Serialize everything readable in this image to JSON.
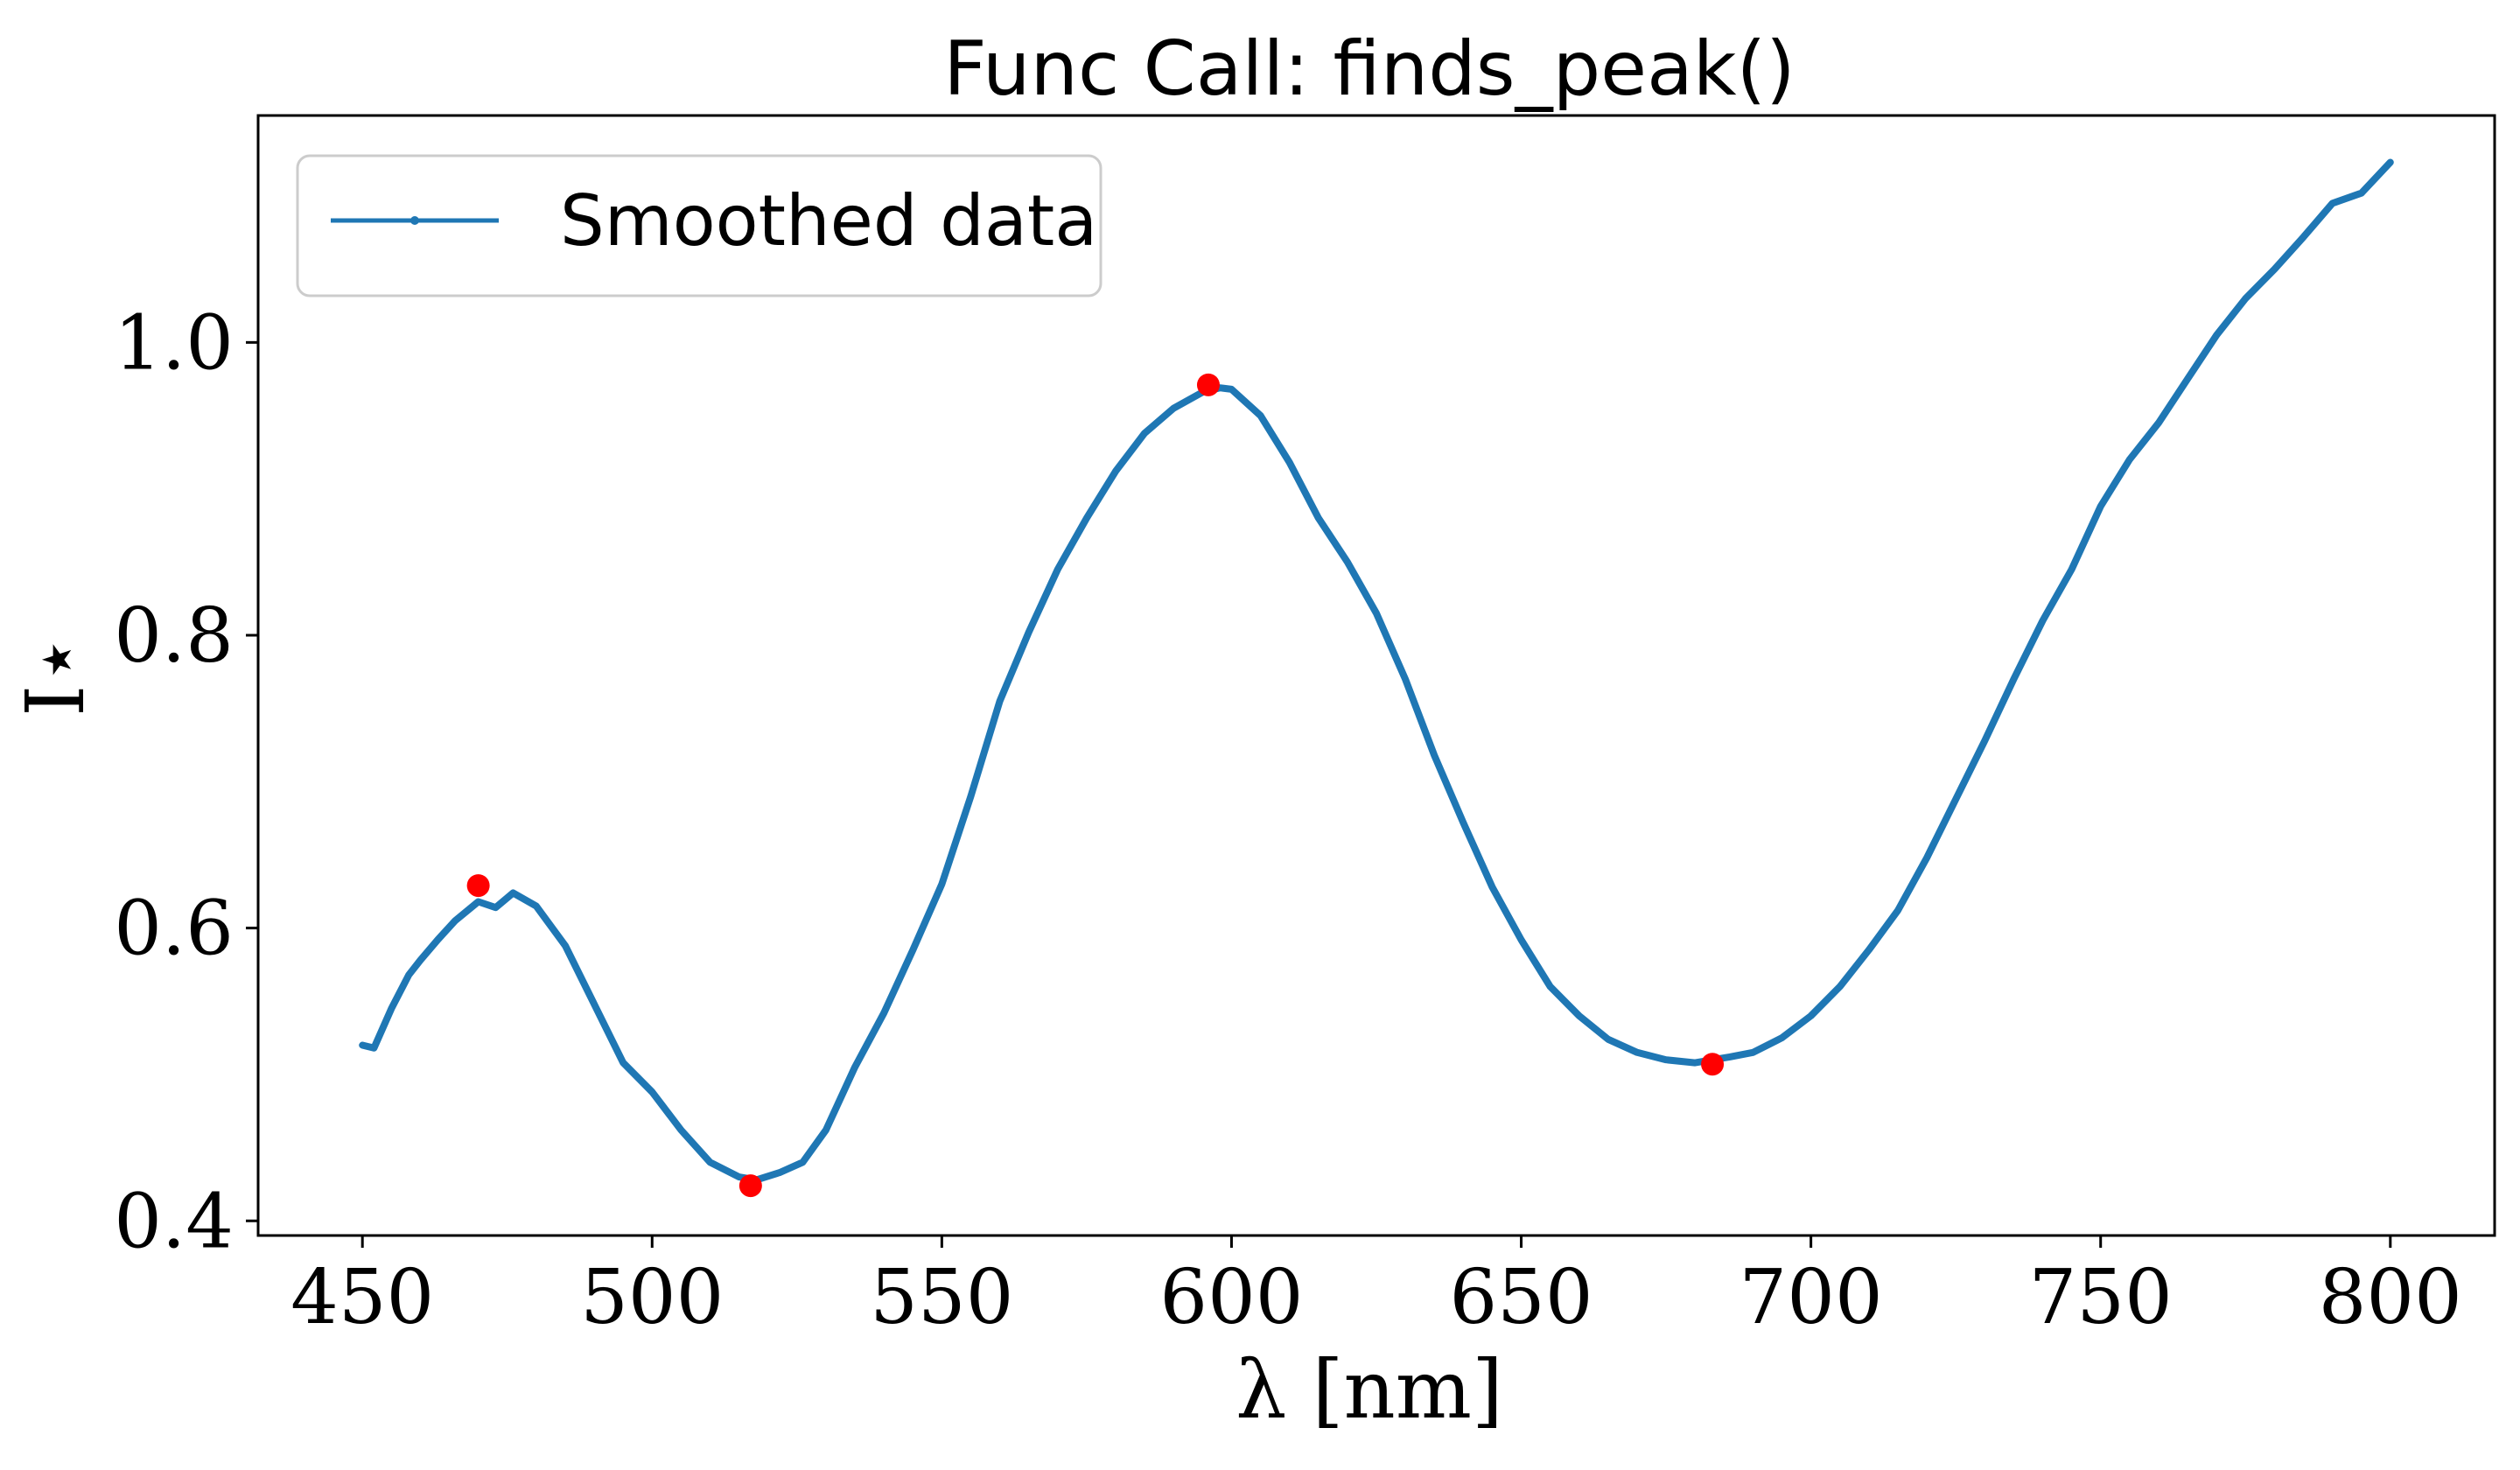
{
  "chart_data": {
    "type": "line",
    "title": "Func Call: finds_peak()",
    "xlabel": "λ [nm]",
    "ylabel": "I⋆",
    "xlim": [
      432,
      818
    ],
    "ylim": [
      0.39,
      1.155
    ],
    "xticks": [
      450,
      500,
      550,
      600,
      650,
      700,
      750,
      800
    ],
    "yticks": [
      0.4,
      0.6,
      0.8,
      1.0
    ],
    "xtick_labels": [
      "450",
      "500",
      "550",
      "600",
      "650",
      "700",
      "750",
      "800"
    ],
    "ytick_labels": [
      "0.4",
      "0.6",
      "0.8",
      "1.0"
    ],
    "grid": false,
    "legend": {
      "position": "top-left",
      "entries": [
        "Smoothed data"
      ]
    },
    "series": [
      {
        "name": "Smoothed data",
        "color": "#1f77b4",
        "x": [
          450,
          452,
          455,
          458,
          460,
          463,
          466,
          470,
          473,
          476,
          480,
          485,
          490,
          495,
          500,
          505,
          510,
          515,
          518,
          522,
          526,
          530,
          535,
          540,
          545,
          550,
          555,
          560,
          565,
          570,
          575,
          580,
          585,
          590,
          595,
          598,
          600,
          605,
          610,
          615,
          620,
          625,
          630,
          635,
          640,
          645,
          650,
          655,
          660,
          665,
          670,
          675,
          680,
          683,
          686,
          690,
          695,
          700,
          705,
          710,
          715,
          720,
          725,
          730,
          735,
          740,
          745,
          750,
          755,
          760,
          765,
          770,
          775,
          780,
          785,
          790,
          795,
          800
        ],
        "y": [
          0.52,
          0.518,
          0.545,
          0.568,
          0.578,
          0.592,
          0.605,
          0.618,
          0.614,
          0.624,
          0.615,
          0.588,
          0.548,
          0.508,
          0.488,
          0.462,
          0.44,
          0.43,
          0.428,
          0.433,
          0.44,
          0.462,
          0.505,
          0.542,
          0.585,
          0.63,
          0.69,
          0.755,
          0.802,
          0.845,
          0.88,
          0.912,
          0.938,
          0.955,
          0.966,
          0.969,
          0.968,
          0.95,
          0.918,
          0.88,
          0.85,
          0.815,
          0.77,
          0.718,
          0.672,
          0.628,
          0.592,
          0.56,
          0.54,
          0.524,
          0.515,
          0.51,
          0.508,
          0.51,
          0.512,
          0.515,
          0.525,
          0.54,
          0.56,
          0.585,
          0.612,
          0.648,
          0.688,
          0.728,
          0.77,
          0.81,
          0.845,
          0.888,
          0.92,
          0.945,
          0.975,
          1.005,
          1.03,
          1.05,
          1.072,
          1.095,
          1.102,
          1.123
        ]
      },
      {
        "name": "",
        "color": "#ff0000",
        "x": [
          470,
          517,
          596,
          683
        ],
        "y": [
          0.629,
          0.424,
          0.971,
          0.507
        ]
      }
    ]
  }
}
